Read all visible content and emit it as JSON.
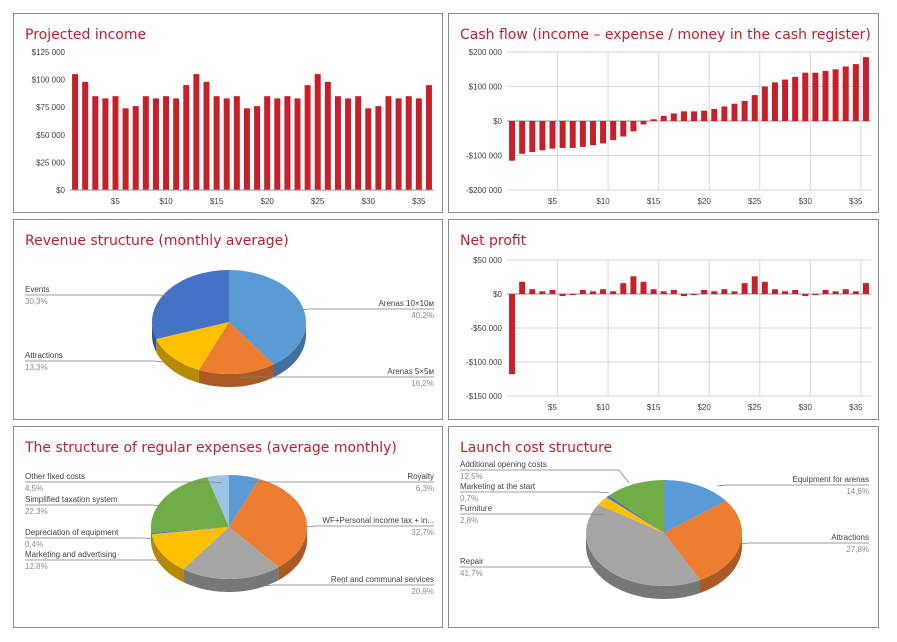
{
  "colors": {
    "title": "#c0202b",
    "bar": "#c8202b",
    "grid": "#d9d9d9",
    "axis": "#8c8c8c",
    "pie_blue_light": "#5b9bd5",
    "pie_orange": "#ed7d31",
    "pie_gray": "#a5a5a5",
    "pie_yellow": "#ffc000",
    "pie_blue_dark": "#4472c4",
    "pie_green": "#70ad47"
  },
  "chart_data": [
    {
      "id": "projected_income",
      "type": "bar",
      "title": "Projected income",
      "x": [
        1,
        2,
        3,
        4,
        5,
        6,
        7,
        8,
        9,
        10,
        11,
        12,
        13,
        14,
        15,
        16,
        17,
        18,
        19,
        20,
        21,
        22,
        23,
        24,
        25,
        26,
        27,
        28,
        29,
        30,
        31,
        32,
        33,
        34,
        35,
        36
      ],
      "values": [
        105000,
        98000,
        85000,
        83000,
        85000,
        74000,
        76000,
        85000,
        83000,
        85000,
        83000,
        95000,
        105000,
        98000,
        85000,
        83000,
        85000,
        74000,
        76000,
        85000,
        83000,
        85000,
        83000,
        95000,
        105000,
        98000,
        85000,
        83000,
        85000,
        74000,
        76000,
        85000,
        83000,
        85000,
        83000,
        95000
      ],
      "xticks": [
        5,
        10,
        15,
        20,
        25,
        30,
        35
      ],
      "xtick_labels": [
        "$5",
        "$10",
        "$15",
        "$20",
        "$25",
        "$30",
        "$35"
      ],
      "ylim": [
        0,
        125000
      ],
      "yticks": [
        0,
        25000,
        50000,
        75000,
        100000,
        125000
      ],
      "ytick_labels": [
        "$0",
        "$25 000",
        "$50 000",
        "$75 000",
        "$100 000",
        "$125 000"
      ],
      "grid": false
    },
    {
      "id": "cash_flow",
      "type": "bar",
      "title": "Cash flow (income – expense / money in the cash register)",
      "x": [
        1,
        2,
        3,
        4,
        5,
        6,
        7,
        8,
        9,
        10,
        11,
        12,
        13,
        14,
        15,
        16,
        17,
        18,
        19,
        20,
        21,
        22,
        23,
        24,
        25,
        26,
        27,
        28,
        29,
        30,
        31,
        32,
        33,
        34,
        35,
        36
      ],
      "values": [
        -115000,
        -95000,
        -90000,
        -85000,
        -80000,
        -78000,
        -78000,
        -75000,
        -70000,
        -65000,
        -55000,
        -45000,
        -30000,
        -10000,
        5000,
        15000,
        22000,
        28000,
        28000,
        30000,
        35000,
        42000,
        50000,
        58000,
        75000,
        100000,
        112000,
        120000,
        128000,
        140000,
        140000,
        145000,
        150000,
        158000,
        165000,
        185000
      ],
      "xticks": [
        5,
        10,
        15,
        20,
        25,
        30,
        35
      ],
      "xtick_labels": [
        "$5",
        "$10",
        "$15",
        "$20",
        "$25",
        "$30",
        "$35"
      ],
      "ylim": [
        -200000,
        200000
      ],
      "yticks": [
        -200000,
        -100000,
        0,
        100000,
        200000
      ],
      "ytick_labels": [
        "-$200 000",
        "-$100 000",
        "$0",
        "$100 000",
        "$200 000"
      ],
      "grid": true
    },
    {
      "id": "revenue_structure",
      "type": "pie",
      "title": "Revenue structure (monthly average)",
      "slices": [
        {
          "label": "Arenas 10×10м",
          "pct_label": "40,2%",
          "value": 40.2,
          "color": "#5b9bd5"
        },
        {
          "label": "Arenas 5×5м",
          "pct_label": "16,2%",
          "value": 16.2,
          "color": "#ed7d31"
        },
        {
          "label": "Attractions",
          "pct_label": "13,3%",
          "value": 13.3,
          "color": "#ffc000"
        },
        {
          "label": "Events",
          "pct_label": "30,3%",
          "value": 30.3,
          "color": "#4472c4"
        }
      ]
    },
    {
      "id": "net_profit",
      "type": "bar",
      "title": "Net profit",
      "x": [
        1,
        2,
        3,
        4,
        5,
        6,
        7,
        8,
        9,
        10,
        11,
        12,
        13,
        14,
        15,
        16,
        17,
        18,
        19,
        20,
        21,
        22,
        23,
        24,
        25,
        26,
        27,
        28,
        29,
        30,
        31,
        32,
        33,
        34,
        35,
        36
      ],
      "values": [
        -118000,
        18000,
        7000,
        4000,
        6000,
        -3000,
        -1000,
        6000,
        4000,
        7000,
        4000,
        16000,
        26000,
        18000,
        7000,
        4000,
        6000,
        -3000,
        -1000,
        6000,
        4000,
        7000,
        4000,
        16000,
        26000,
        18000,
        7000,
        4000,
        6000,
        -3000,
        -1000,
        6000,
        4000,
        7000,
        4000,
        16000
      ],
      "xticks": [
        5,
        10,
        15,
        20,
        25,
        30,
        35
      ],
      "xtick_labels": [
        "$5",
        "$10",
        "$15",
        "$20",
        "$25",
        "$30",
        "$35"
      ],
      "ylim": [
        -150000,
        50000
      ],
      "yticks": [
        -150000,
        -100000,
        -50000,
        0,
        50000
      ],
      "ytick_labels": [
        "-$150 000",
        "-$100 000",
        "-$50 000",
        "$0",
        "$50 000"
      ],
      "grid": true
    },
    {
      "id": "regular_expenses",
      "type": "pie",
      "title": "The structure of regular expenses (average monthly)",
      "slices": [
        {
          "label": "Royalty",
          "pct_label": "6,3%",
          "value": 6.3,
          "color": "#5b9bd5"
        },
        {
          "label": "WF+Personal income tax + in...",
          "pct_label": "32,7%",
          "value": 32.7,
          "color": "#ed7d31"
        },
        {
          "label": "Rent and communal services",
          "pct_label": "20,9%",
          "value": 20.9,
          "color": "#a5a5a5"
        },
        {
          "label": "Marketing and advertising",
          "pct_label": "12,8%",
          "value": 12.8,
          "color": "#ffc000"
        },
        {
          "label": "Depreciation of equipment",
          "pct_label": "0,4%",
          "value": 0.4,
          "color": "#4472c4"
        },
        {
          "label": "Simplified taxation system",
          "pct_label": "22,3%",
          "value": 22.3,
          "color": "#70ad47"
        },
        {
          "label": "Other fixed costs",
          "pct_label": "4,5%",
          "value": 4.5,
          "color": "#9dc3e6"
        }
      ]
    },
    {
      "id": "launch_cost",
      "type": "pie",
      "title": "Launch cost structure",
      "slices": [
        {
          "label": "Equipment for arenas",
          "pct_label": "14,6%",
          "value": 14.6,
          "color": "#5b9bd5"
        },
        {
          "label": "Attractions",
          "pct_label": "27,8%",
          "value": 27.8,
          "color": "#ed7d31"
        },
        {
          "label": "Repair",
          "pct_label": "41,7%",
          "value": 41.7,
          "color": "#a5a5a5"
        },
        {
          "label": "Furniture",
          "pct_label": "2,8%",
          "value": 2.8,
          "color": "#ffc000"
        },
        {
          "label": "Marketing at the start",
          "pct_label": "0,7%",
          "value": 0.7,
          "color": "#4472c4"
        },
        {
          "label": "Additional opening costs",
          "pct_label": "12,5%",
          "value": 12.5,
          "color": "#70ad47"
        }
      ]
    }
  ]
}
